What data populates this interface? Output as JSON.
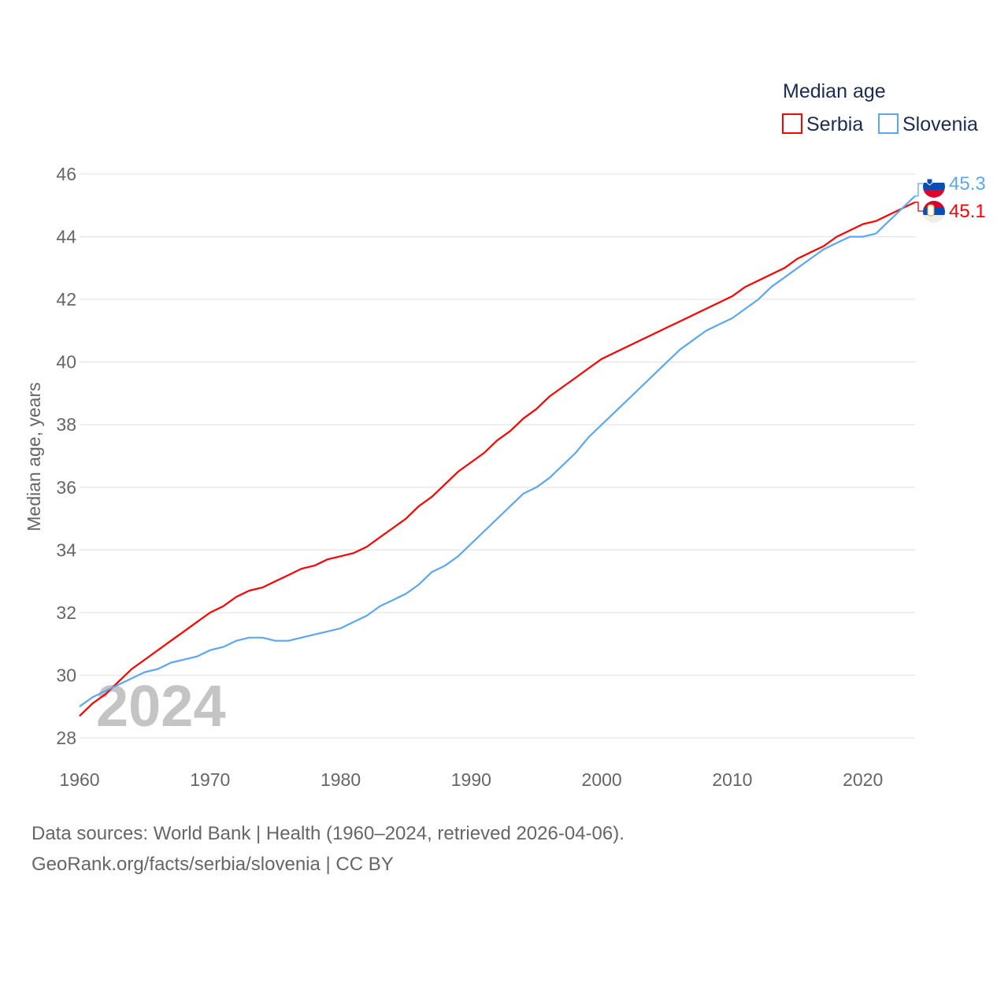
{
  "chart_data": {
    "type": "line",
    "title": "",
    "legend_title": "Median age",
    "legend_position": "top-right",
    "ylabel": "Median age, years",
    "xlabel": "",
    "year_watermark": "2024",
    "xlim": [
      1960,
      2024
    ],
    "ylim": [
      28,
      46
    ],
    "x_ticks": [
      "1960",
      "1970",
      "1980",
      "1990",
      "2000",
      "2010",
      "2020"
    ],
    "y_ticks": [
      "28",
      "30",
      "32",
      "34",
      "36",
      "38",
      "40",
      "42",
      "44",
      "46"
    ],
    "grid": true,
    "x": [
      1960,
      1961,
      1962,
      1963,
      1964,
      1965,
      1966,
      1967,
      1968,
      1969,
      1970,
      1971,
      1972,
      1973,
      1974,
      1975,
      1976,
      1977,
      1978,
      1979,
      1980,
      1981,
      1982,
      1983,
      1984,
      1985,
      1986,
      1987,
      1988,
      1989,
      1990,
      1991,
      1992,
      1993,
      1994,
      1995,
      1996,
      1997,
      1998,
      1999,
      2000,
      2001,
      2002,
      2003,
      2004,
      2005,
      2006,
      2007,
      2008,
      2009,
      2010,
      2011,
      2012,
      2013,
      2014,
      2015,
      2016,
      2017,
      2018,
      2019,
      2020,
      2021,
      2022,
      2023,
      2024
    ],
    "series": [
      {
        "name": "Serbia",
        "color": "#ff0000",
        "end_label": "45.1",
        "values": [
          28.7,
          29.1,
          29.4,
          29.8,
          30.2,
          30.5,
          30.8,
          31.1,
          31.4,
          31.7,
          32.0,
          32.2,
          32.5,
          32.7,
          32.8,
          33.0,
          33.2,
          33.4,
          33.5,
          33.7,
          33.8,
          33.9,
          34.1,
          34.4,
          34.7,
          35.0,
          35.4,
          35.7,
          36.1,
          36.5,
          36.8,
          37.1,
          37.5,
          37.8,
          38.2,
          38.5,
          38.9,
          39.2,
          39.5,
          39.8,
          40.1,
          40.3,
          40.5,
          40.7,
          40.9,
          41.1,
          41.3,
          41.5,
          41.7,
          41.9,
          42.1,
          42.4,
          42.6,
          42.8,
          43.0,
          43.3,
          43.5,
          43.7,
          44.0,
          44.2,
          44.4,
          44.5,
          44.7,
          44.9,
          45.1
        ]
      },
      {
        "name": "Slovenia",
        "color": "#5ca8f0",
        "end_label": "45.3",
        "values": [
          29.0,
          29.3,
          29.5,
          29.7,
          29.9,
          30.1,
          30.2,
          30.4,
          30.5,
          30.6,
          30.8,
          30.9,
          31.1,
          31.2,
          31.2,
          31.1,
          31.1,
          31.2,
          31.3,
          31.4,
          31.5,
          31.7,
          31.9,
          32.2,
          32.4,
          32.6,
          32.9,
          33.3,
          33.5,
          33.8,
          34.2,
          34.6,
          35.0,
          35.4,
          35.8,
          36.0,
          36.3,
          36.7,
          37.1,
          37.6,
          38.0,
          38.4,
          38.8,
          39.2,
          39.6,
          40.0,
          40.4,
          40.7,
          41.0,
          41.2,
          41.4,
          41.7,
          42.0,
          42.4,
          42.7,
          43.0,
          43.3,
          43.6,
          43.8,
          44.0,
          44.0,
          44.1,
          44.5,
          44.9,
          45.3
        ]
      }
    ]
  },
  "footer": {
    "line1": "Data sources: World Bank | Health (1960–2024, retrieved 2026-04-06).",
    "line2": "GeoRank.org/facts/serbia/slovenia | CC BY"
  }
}
